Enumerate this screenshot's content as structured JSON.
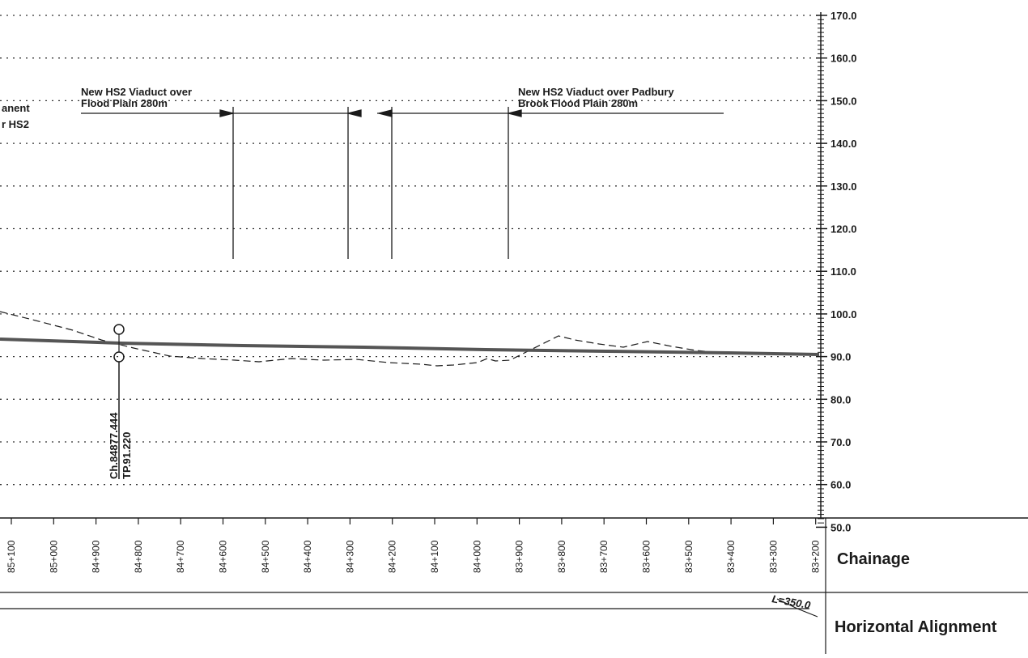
{
  "elevation_axis": {
    "labels": [
      "170.0",
      "160.0",
      "150.0",
      "140.0",
      "130.0",
      "120.0",
      "110.0",
      "100.0",
      "90.0",
      "80.0",
      "70.0",
      "60.0",
      "50.0"
    ]
  },
  "chainage_band": {
    "title": "Chainage",
    "labels": [
      "85+100",
      "85+000",
      "84+900",
      "84+800",
      "84+700",
      "84+600",
      "84+500",
      "84+400",
      "84+300",
      "84+200",
      "84+100",
      "84+000",
      "83+900",
      "83+800",
      "83+700",
      "83+600",
      "83+500",
      "83+400",
      "83+300",
      "83+200"
    ]
  },
  "horizontal_alignment_band": {
    "title": "Horizontal Alignment",
    "curve_label": "L=350.0"
  },
  "annotations": {
    "left_cut_line1": "anent",
    "left_cut_line2": "r HS2",
    "viaduct_left_line1": "New HS2 Viaduct over",
    "viaduct_left_line2": "Flood Plain 280m",
    "viaduct_right_line1": "New HS2 Viaduct over Padbury",
    "viaduct_right_line2": "Brook Flood Plain 280m"
  },
  "tangent_point": {
    "chainage": "Ch.84877.444",
    "level": "TP.91.220"
  },
  "colors": {
    "ink": "#1a1a1a",
    "proposed_line": "#555555",
    "grid_dots": "#333333"
  }
}
